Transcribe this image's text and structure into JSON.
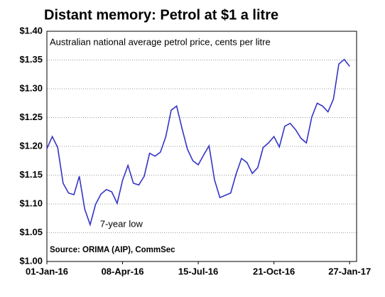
{
  "chart_data": {
    "type": "line",
    "title": "Distant memory: Petrol at $1 a litre",
    "subtitle": "Australian national average petrol price, cents per litre",
    "source": "Source: ORIMA (AIP), CommSec",
    "annotations": [
      {
        "text": "7-year low",
        "x": "2016-02-26",
        "y": 1.064
      }
    ],
    "x": [
      "2016-01-01",
      "2016-01-08",
      "2016-01-15",
      "2016-01-22",
      "2016-01-29",
      "2016-02-05",
      "2016-02-12",
      "2016-02-19",
      "2016-02-26",
      "2016-03-04",
      "2016-03-11",
      "2016-03-18",
      "2016-03-25",
      "2016-04-01",
      "2016-04-08",
      "2016-04-15",
      "2016-04-22",
      "2016-04-29",
      "2016-05-06",
      "2016-05-13",
      "2016-05-20",
      "2016-05-27",
      "2016-06-03",
      "2016-06-10",
      "2016-06-17",
      "2016-06-24",
      "2016-07-01",
      "2016-07-08",
      "2016-07-15",
      "2016-07-22",
      "2016-07-29",
      "2016-08-05",
      "2016-08-12",
      "2016-08-19",
      "2016-08-26",
      "2016-09-02",
      "2016-09-09",
      "2016-09-16",
      "2016-09-23",
      "2016-09-30",
      "2016-10-07",
      "2016-10-14",
      "2016-10-21",
      "2016-10-28",
      "2016-11-04",
      "2016-11-11",
      "2016-11-18",
      "2016-11-25",
      "2016-12-02",
      "2016-12-09",
      "2016-12-16",
      "2016-12-23",
      "2016-12-30",
      "2017-01-06",
      "2017-01-13",
      "2017-01-20",
      "2017-01-27"
    ],
    "series": [
      {
        "color": "#3434c8",
        "values": [
          1.196,
          1.217,
          1.198,
          1.136,
          1.119,
          1.116,
          1.148,
          1.091,
          1.064,
          1.099,
          1.117,
          1.125,
          1.121,
          1.101,
          1.141,
          1.167,
          1.136,
          1.133,
          1.148,
          1.188,
          1.183,
          1.19,
          1.217,
          1.263,
          1.27,
          1.231,
          1.195,
          1.175,
          1.168,
          1.185,
          1.201,
          1.142,
          1.111,
          1.115,
          1.119,
          1.152,
          1.179,
          1.172,
          1.153,
          1.163,
          1.198,
          1.206,
          1.217,
          1.199,
          1.235,
          1.24,
          1.229,
          1.214,
          1.206,
          1.251,
          1.275,
          1.27,
          1.26,
          1.282,
          1.343,
          1.351,
          1.339
        ]
      }
    ],
    "xlim": [
      "2016-01-01",
      "2017-02-05"
    ],
    "xticks": [
      {
        "value": "2016-01-01",
        "label": "01-Jan-16"
      },
      {
        "value": "2016-04-08",
        "label": "08-Apr-16"
      },
      {
        "value": "2016-07-15",
        "label": "15-Jul-16"
      },
      {
        "value": "2016-10-21",
        "label": "21-Oct-16"
      },
      {
        "value": "2017-01-27",
        "label": "27-Jan-17"
      }
    ],
    "ylim": [
      1.0,
      1.4
    ],
    "yticks": [
      {
        "value": 1.0,
        "label": "$1.00"
      },
      {
        "value": 1.05,
        "label": "$1.05"
      },
      {
        "value": 1.1,
        "label": "$1.10"
      },
      {
        "value": 1.15,
        "label": "$1.15"
      },
      {
        "value": 1.2,
        "label": "$1.20"
      },
      {
        "value": 1.25,
        "label": "$1.25"
      },
      {
        "value": 1.3,
        "label": "$1.30"
      },
      {
        "value": 1.35,
        "label": "$1.35"
      },
      {
        "value": 1.4,
        "label": "$1.40"
      }
    ],
    "grid": true
  }
}
